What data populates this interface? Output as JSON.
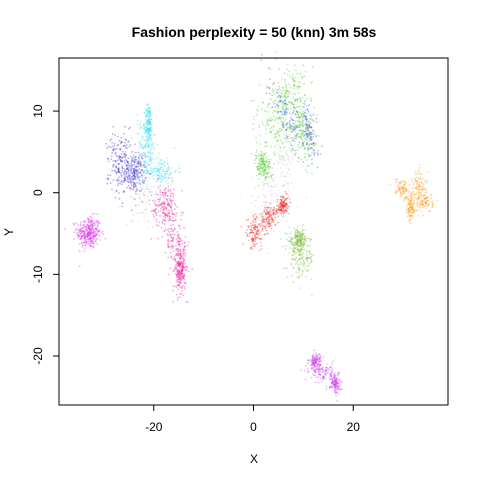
{
  "chart_data": {
    "type": "scatter",
    "title": "Fashion perplexity = 50 (knn) 3m 58s",
    "xlabel": "X",
    "ylabel": "Y",
    "xlim": [
      -39,
      39
    ],
    "ylim": [
      -26,
      16.5
    ],
    "xticks": [
      -20,
      0,
      20
    ],
    "yticks": [
      -20,
      -10,
      0,
      10
    ],
    "grid": false,
    "legend": "none",
    "clusters": [
      {
        "color": "#dd22ee",
        "n": 320,
        "blobs": [
          [
            -33,
            -4.9,
            1.6,
            1.3,
            0
          ]
        ]
      },
      {
        "color": "#3322cc",
        "n": 380,
        "blobs": [
          [
            -26.5,
            3.4,
            1.9,
            2.6,
            0.3
          ],
          [
            -23.8,
            2.5,
            1.4,
            1.6,
            0
          ]
        ]
      },
      {
        "color": "#33ddee",
        "n": 420,
        "blobs": [
          [
            -21.5,
            5.5,
            1.4,
            2.4,
            0.2
          ],
          [
            -18.7,
            2.7,
            2.3,
            1.1,
            0
          ],
          [
            -21.0,
            8.5,
            0.5,
            1.5,
            0
          ]
        ]
      },
      {
        "color": "#ee1199",
        "n": 520,
        "blobs": [
          [
            -17.8,
            -1.5,
            1.6,
            2.0,
            0.3
          ],
          [
            -15.5,
            -6.5,
            1.5,
            3.6,
            0.2
          ],
          [
            -14.6,
            -9.5,
            0.7,
            1.8,
            0
          ]
        ]
      },
      {
        "color": "#44cc22",
        "n": 620,
        "blobs": [
          [
            4.2,
            8.5,
            2.6,
            2.6,
            0.6
          ],
          [
            7.5,
            12.0,
            2.3,
            2.8,
            0.2
          ],
          [
            10.0,
            7.5,
            1.6,
            2.5,
            0.3
          ],
          [
            2.0,
            3.3,
            1.0,
            1.3,
            0.5
          ]
        ]
      },
      {
        "color": "#2255cc",
        "n": 220,
        "blobs": [
          [
            6.5,
            9.5,
            1.1,
            4.0,
            0.7
          ],
          [
            11.2,
            7.5,
            1.0,
            2.5,
            0.3
          ]
        ]
      },
      {
        "color": "#ee2222",
        "n": 380,
        "blobs": [
          [
            0.2,
            -4.9,
            1.4,
            1.3,
            0.4
          ],
          [
            3.2,
            -3.0,
            1.8,
            1.0,
            0.6
          ],
          [
            5.9,
            -1.6,
            0.9,
            0.6,
            0.5
          ]
        ]
      },
      {
        "color": "#77bb33",
        "n": 330,
        "blobs": [
          [
            9.5,
            -7.9,
            1.8,
            1.8,
            0
          ],
          [
            9.0,
            -5.8,
            1.2,
            0.9,
            0
          ]
        ]
      },
      {
        "color": "#cc33ee",
        "n": 340,
        "blobs": [
          [
            14.0,
            -22.0,
            1.8,
            0.9,
            -0.2
          ],
          [
            12.4,
            -20.7,
            0.8,
            0.7,
            0
          ],
          [
            16.4,
            -23.3,
            0.7,
            0.9,
            0
          ]
        ]
      },
      {
        "color": "#ff9911",
        "n": 380,
        "blobs": [
          [
            33.3,
            0.7,
            1.1,
            1.5,
            0
          ],
          [
            34.2,
            -1.2,
            1.2,
            0.8,
            0
          ],
          [
            30.0,
            0.3,
            1.3,
            0.7,
            -0.5
          ],
          [
            31.5,
            -2.0,
            0.5,
            1.0,
            0
          ]
        ]
      },
      {
        "color": "#aaaaaa",
        "n": 260,
        "blobs": [
          [
            3.5,
            -1.5,
            3.5,
            2.6,
            0.5
          ],
          [
            -22.0,
            -0.5,
            2.5,
            2.5,
            0
          ],
          [
            6.5,
            4.5,
            1.5,
            2.5,
            0
          ]
        ]
      }
    ]
  }
}
